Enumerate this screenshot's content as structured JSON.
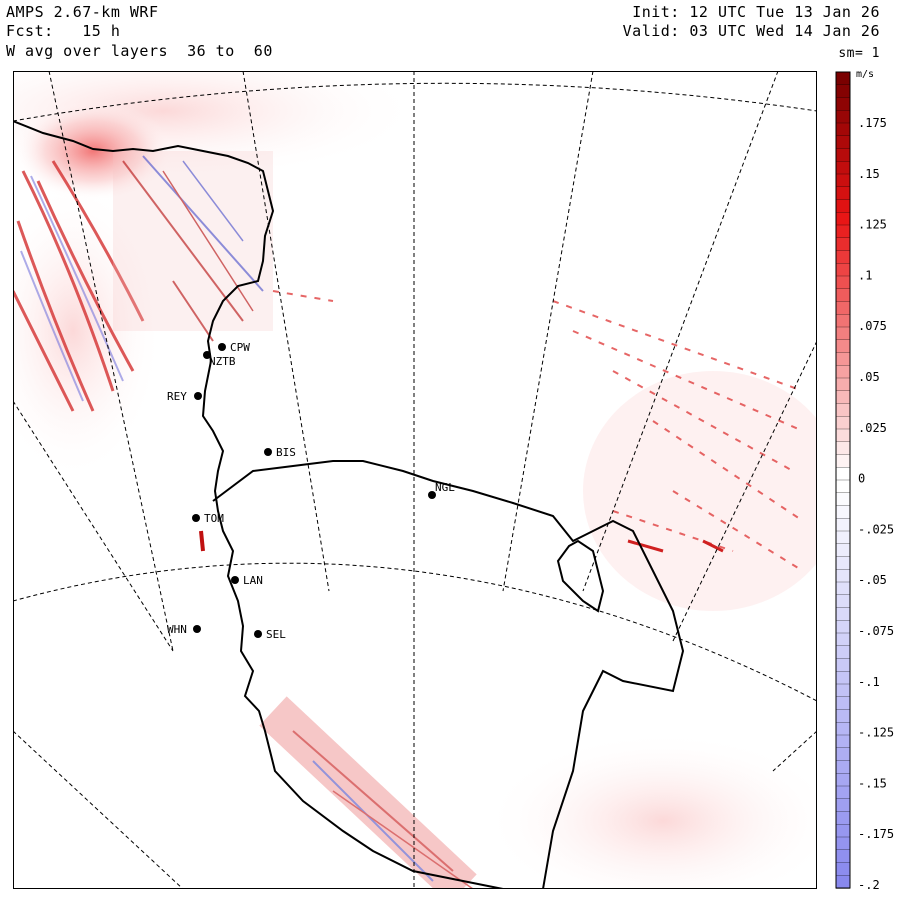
{
  "header": {
    "line1_left": "AMPS 2.67-km WRF",
    "line2_left": "Fcst:   15 h",
    "line3_left": "W avg over layers  36 to  60",
    "line1_right": "Init: 12 UTC Tue 13 Jan 26",
    "line2_right": "Valid: 03 UTC Wed 14 Jan 26",
    "line3_right": "sm= 1"
  },
  "colorbar": {
    "units": "m/s",
    "ticks": [
      ".175",
      ".15",
      ".125",
      ".1",
      ".075",
      ".05",
      ".025",
      "0",
      "-.025",
      "-.05",
      "-.075",
      "-.1",
      "-.125",
      "-.15",
      "-.175",
      "-.2"
    ],
    "max_color": "#7a0000",
    "mid_color": "#ffffff",
    "min_color": "#8888ee"
  },
  "stations": [
    {
      "id": "CPW",
      "label": "CPW"
    },
    {
      "id": "NZTB",
      "label": "NZTB"
    },
    {
      "id": "REY",
      "label": "REY"
    },
    {
      "id": "BIS",
      "label": "BIS"
    },
    {
      "id": "NGL",
      "label": "NGL"
    },
    {
      "id": "TOM",
      "label": "TOM"
    },
    {
      "id": "LAN",
      "label": "LAN"
    },
    {
      "id": "WHN",
      "label": "WHN"
    },
    {
      "id": "SEL",
      "label": "SEL"
    }
  ]
}
